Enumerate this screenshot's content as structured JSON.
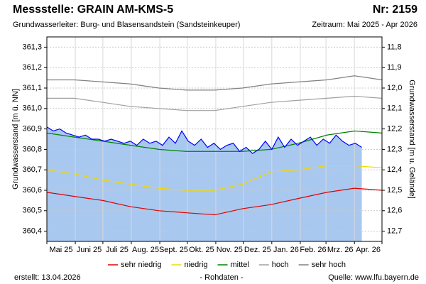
{
  "chart_data": {
    "type": "line",
    "title": "Messstelle: GRAIN  AM-KMS-5",
    "number": "Nr: 2159",
    "aquifer": "Grundwasserleiter:   Burg- und Blasensandstein (Sandsteinkeuper)",
    "period": "Zeitraum: Mai 2025 - Apr 2026",
    "ylabel": "Grundwasserstand [m ü. NN]",
    "y2label": "Grundwasserstand [m u. Gelände]",
    "created": "erstellt:  13.04.2026",
    "note": "- Rohdaten -",
    "source": "Quelle: www.lfu.bayern.de",
    "categories": [
      "Mai 25",
      "Juni 25",
      "Juli 25",
      "Aug. 25",
      "Sept. 25",
      "Okt. 25",
      "Nov. 25",
      "Dez. 25",
      "Jan. 26",
      "Feb. 26",
      "Mrz. 26",
      "Apr. 26"
    ],
    "xlim": [
      0,
      365
    ],
    "xticks": [
      0,
      31,
      61,
      92,
      123,
      153,
      184,
      214,
      245,
      276,
      304,
      335,
      365
    ],
    "ylim": [
      360.35,
      361.35
    ],
    "yticks": [
      {
        "value": 360.4,
        "label": "360,4"
      },
      {
        "value": 360.5,
        "label": "360,5"
      },
      {
        "value": 360.6,
        "label": "360,6"
      },
      {
        "value": 360.7,
        "label": "360,7"
      },
      {
        "value": 360.8,
        "label": "360,8"
      },
      {
        "value": 360.9,
        "label": "360,9"
      },
      {
        "value": 361.0,
        "label": "361,0"
      },
      {
        "value": 361.1,
        "label": "361,1"
      },
      {
        "value": 361.2,
        "label": "361,2"
      },
      {
        "value": 361.3,
        "label": "361,3"
      }
    ],
    "y2lim": [
      11.75,
      12.75
    ],
    "y2ticks": [
      {
        "value": 11.8,
        "label": "11,8"
      },
      {
        "value": 11.9,
        "label": "11,9"
      },
      {
        "value": 12.0,
        "label": "12,0"
      },
      {
        "value": 12.1,
        "label": "12,1"
      },
      {
        "value": 12.2,
        "label": "12,2"
      },
      {
        "value": 12.3,
        "label": "12,3"
      },
      {
        "value": 12.4,
        "label": "12,4"
      },
      {
        "value": 12.5,
        "label": "12,5"
      },
      {
        "value": 12.6,
        "label": "12,6"
      },
      {
        "value": 12.7,
        "label": "12,7"
      }
    ],
    "grid": true,
    "measurement": {
      "color": "#0000ff",
      "fill": "#a8c8f0",
      "x": [
        0,
        7,
        14,
        21,
        28,
        35,
        42,
        49,
        56,
        63,
        70,
        77,
        84,
        91,
        98,
        105,
        112,
        119,
        126,
        133,
        140,
        147,
        154,
        161,
        168,
        175,
        182,
        189,
        196,
        203,
        210,
        217,
        224,
        231,
        238,
        245,
        252,
        259,
        266,
        273,
        280,
        287,
        294,
        301,
        308,
        315,
        322,
        329,
        336,
        343
      ],
      "values": [
        360.91,
        360.89,
        360.9,
        360.88,
        360.87,
        360.86,
        360.87,
        360.85,
        360.85,
        360.84,
        360.85,
        360.84,
        360.83,
        360.84,
        360.82,
        360.85,
        360.83,
        360.84,
        360.82,
        360.86,
        360.83,
        360.89,
        360.84,
        360.82,
        360.85,
        360.81,
        360.83,
        360.8,
        360.82,
        360.83,
        360.79,
        360.81,
        360.78,
        360.8,
        360.84,
        360.8,
        360.86,
        360.81,
        360.85,
        360.82,
        360.84,
        360.86,
        360.82,
        360.85,
        360.83,
        360.87,
        360.84,
        360.82,
        360.83,
        360.81
      ]
    },
    "series": [
      {
        "name": "sehr niedrig",
        "color": "#e00000",
        "x": [
          0,
          30,
          61,
          91,
          122,
          152,
          183,
          213,
          244,
          274,
          305,
          335,
          365
        ],
        "values": [
          360.59,
          360.57,
          360.55,
          360.52,
          360.5,
          360.49,
          360.48,
          360.51,
          360.53,
          360.56,
          360.59,
          360.61,
          360.6
        ]
      },
      {
        "name": "niedrig",
        "color": "#f0d800",
        "x": [
          0,
          30,
          61,
          91,
          122,
          152,
          183,
          213,
          244,
          274,
          305,
          335,
          365
        ],
        "values": [
          360.7,
          360.68,
          360.65,
          360.63,
          360.61,
          360.6,
          360.6,
          360.63,
          360.69,
          360.7,
          360.72,
          360.72,
          360.71
        ]
      },
      {
        "name": "mittel",
        "color": "#008000",
        "x": [
          0,
          30,
          61,
          91,
          122,
          152,
          183,
          213,
          244,
          274,
          305,
          335,
          365
        ],
        "values": [
          360.88,
          360.86,
          360.84,
          360.82,
          360.8,
          360.79,
          360.79,
          360.79,
          360.8,
          360.83,
          360.87,
          360.89,
          360.88
        ]
      },
      {
        "name": "hoch",
        "color": "#a0a0a0",
        "x": [
          0,
          30,
          61,
          91,
          122,
          152,
          183,
          213,
          244,
          274,
          305,
          335,
          365
        ],
        "values": [
          361.05,
          361.05,
          361.03,
          361.01,
          361.0,
          360.99,
          360.99,
          361.01,
          361.03,
          361.04,
          361.05,
          361.06,
          361.05
        ]
      },
      {
        "name": "sehr hoch",
        "color": "#808080",
        "x": [
          0,
          30,
          61,
          91,
          122,
          152,
          183,
          213,
          244,
          274,
          305,
          335,
          365
        ],
        "values": [
          361.14,
          361.14,
          361.13,
          361.12,
          361.1,
          361.09,
          361.09,
          361.1,
          361.12,
          361.13,
          361.14,
          361.16,
          361.14
        ]
      }
    ]
  }
}
